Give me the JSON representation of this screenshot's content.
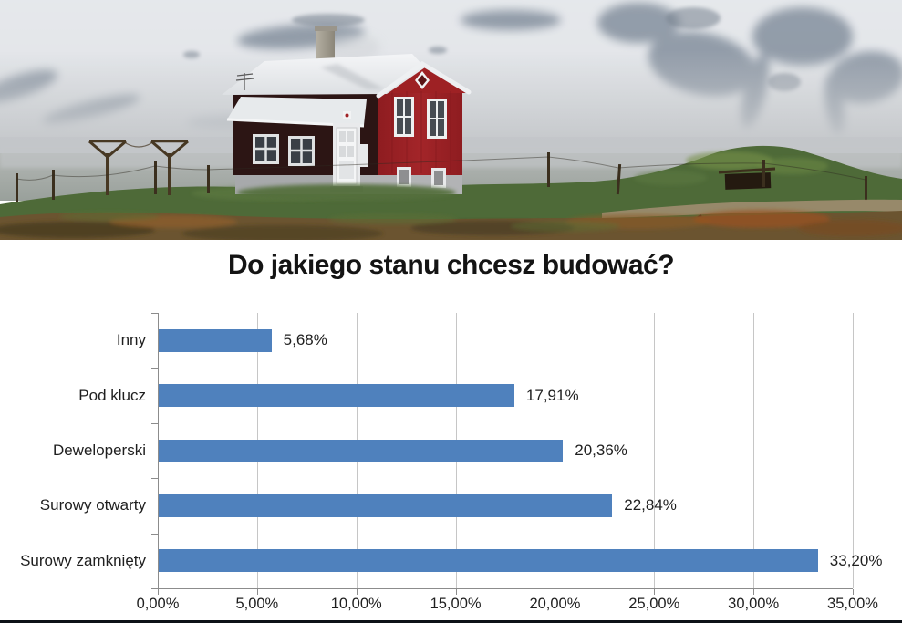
{
  "header_photo": {
    "description": "Red wooden house with white corrugated roof on green coastal meadow, hazy snowy mountains behind, grassy mound and dirt road to the right",
    "colors": {
      "house_red": "#9e2124",
      "house_dark_wing": "#331a18",
      "roof_white": "#f0f2f4",
      "foundation_gray": "#b2b3b5",
      "mountain_snow": "#e3e6e9",
      "mountain_rock": "#8a95a3",
      "haze_gray": "#c4c7ca",
      "sea_gray": "#a7aca8",
      "grass_green": "#4e6a38",
      "foreground_earth": "#6b5430"
    }
  },
  "chart_data": {
    "type": "bar",
    "orientation": "horizontal",
    "title": "Do jakiego stanu chcesz budować?",
    "categories": [
      "Inny",
      "Pod klucz",
      "Deweloperski",
      "Surowy otwarty",
      "Surowy zamknięty"
    ],
    "values": [
      5.68,
      17.91,
      20.36,
      22.84,
      33.2
    ],
    "value_labels": [
      "5,68%",
      "17,91%",
      "20,36%",
      "22,84%",
      "33,20%"
    ],
    "x_tick_labels": [
      "0,00%",
      "5,00%",
      "10,00%",
      "15,00%",
      "20,00%",
      "25,00%",
      "30,00%",
      "35,00%"
    ],
    "x_axis_range": [
      0,
      35
    ],
    "grid": "vertical-only",
    "legend": false,
    "bar_color": "#4f81bd",
    "gridline_color": "#c6c6c6",
    "axis_color": "#8c8c8c",
    "label_color": "#1f1f1f",
    "footer_bar_color": "#0d1117"
  }
}
